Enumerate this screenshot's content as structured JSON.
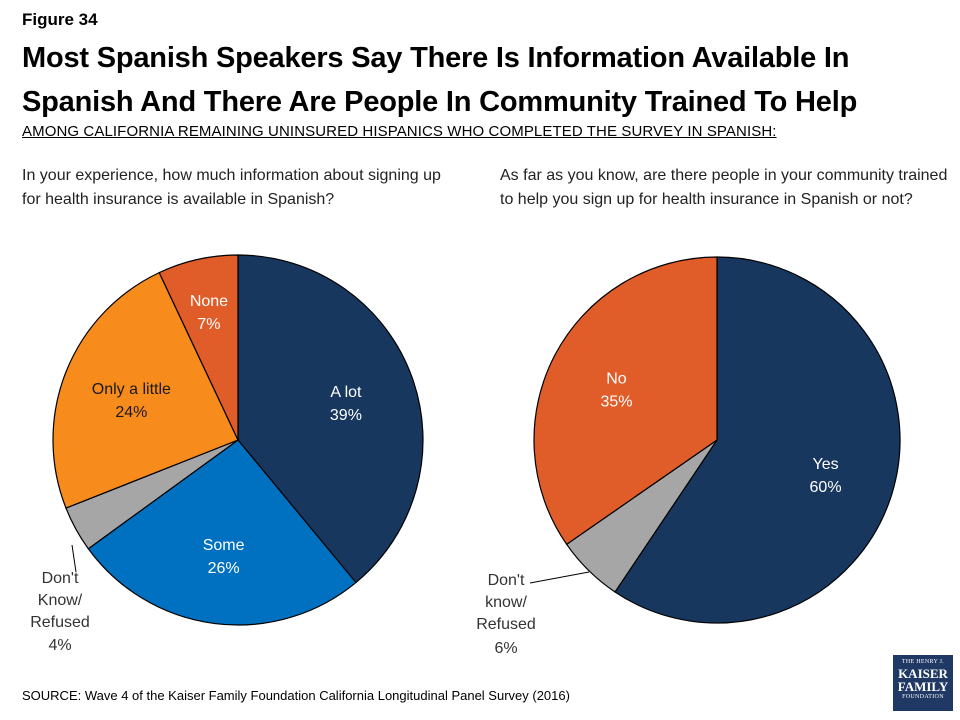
{
  "figure_label": "Figure 34",
  "title": "Most Spanish Speakers Say There Is Information Available In Spanish And There Are People In Community Trained To Help",
  "subtitle": "AMONG CALIFORNIA REMAINING UNINSURED HISPANICS WHO COMPLETED THE SURVEY IN SPANISH:",
  "source": "SOURCE: Wave 4 of the Kaiser Family Foundation California Longitudinal Panel Survey (2016)",
  "logo": {
    "line1": "THE HENRY J.",
    "line2": "KAISER",
    "line3": "FAMILY",
    "line4": "FOUNDATION"
  },
  "chart_data": [
    {
      "type": "pie",
      "title": "In your experience, how much information about signing up for health insurance is available in Spanish?",
      "slices": [
        {
          "label": "A lot",
          "value": 39,
          "display": "39%",
          "color": "#17375e",
          "label_color": "#ffffff",
          "outside": false
        },
        {
          "label": "Some",
          "value": 26,
          "display": "26%",
          "color": "#0070c0",
          "label_color": "#ffffff",
          "outside": false
        },
        {
          "label": "Don't Know/ Refused",
          "lines": [
            "Don't",
            "Know/",
            "Refused"
          ],
          "value": 4,
          "display": "4%",
          "color": "#a6a6a6",
          "label_color": "#333333",
          "outside": true
        },
        {
          "label": "Only a little",
          "value": 24,
          "display": "24%",
          "color": "#f78b1c",
          "label_color": "#1a1a1a",
          "outside": false
        },
        {
          "label": "None",
          "value": 7,
          "display": "7%",
          "color": "#e05c28",
          "label_color": "#ffffff",
          "outside": false
        }
      ]
    },
    {
      "type": "pie",
      "title": "As far as you know, are there people in your community trained to help you sign up for health insurance in Spanish or not?",
      "slices": [
        {
          "label": "Yes",
          "value": 60,
          "display": "60%",
          "color": "#17375e",
          "label_color": "#ffffff",
          "outside": false
        },
        {
          "label": "Don't know/ Refused",
          "lines": [
            "Don't",
            "know/",
            "Refused"
          ],
          "value": 6,
          "display": "6%",
          "color": "#a6a6a6",
          "label_color": "#333333",
          "outside": true
        },
        {
          "label": "No",
          "value": 35,
          "display": "35%",
          "color": "#e05c28",
          "label_color": "#ffffff",
          "outside": false
        }
      ]
    }
  ]
}
